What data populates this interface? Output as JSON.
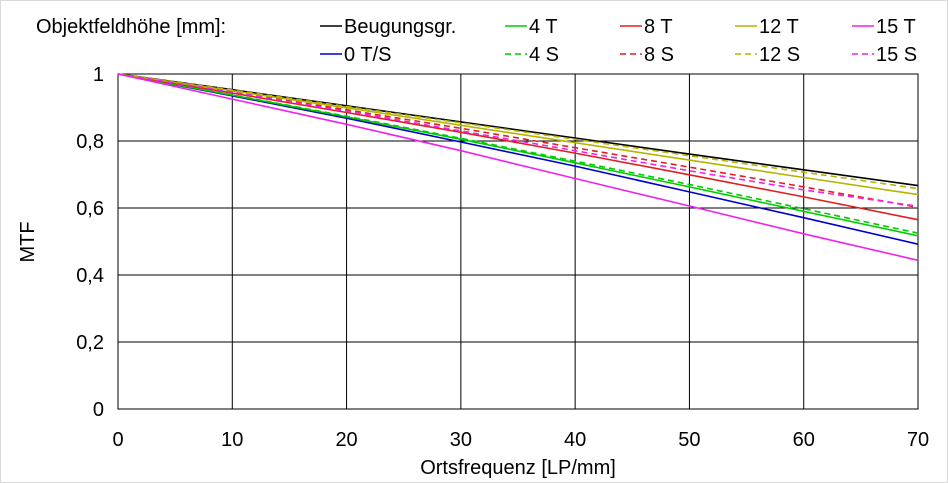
{
  "chart_data": {
    "type": "line",
    "title": "",
    "xlabel": "Ortsfrequenz [LP/mm]",
    "ylabel": "MTF",
    "xlim": [
      0,
      70
    ],
    "ylim": [
      0,
      1
    ],
    "x_ticks": [
      0,
      10,
      20,
      30,
      40,
      50,
      60,
      70
    ],
    "y_ticks": [
      0,
      0.2,
      0.4,
      0.6,
      0.8,
      1
    ],
    "x_tick_labels": [
      "0",
      "10",
      "20",
      "30",
      "40",
      "50",
      "60",
      "70"
    ],
    "y_tick_labels": [
      "0",
      "0,2",
      "0,4",
      "0,6",
      "0,8",
      "1"
    ],
    "grid": true,
    "legend_title": "Objektfeldhöhe [mm]:",
    "legend_position": "top",
    "x": [
      0,
      10,
      20,
      30,
      40,
      50,
      60,
      70
    ],
    "series": [
      {
        "name": "Beugungsgr.",
        "color": "#000000",
        "dash": "solid",
        "values": [
          1,
          0.953,
          0.905,
          0.857,
          0.809,
          0.761,
          0.714,
          0.667
        ]
      },
      {
        "name": "0 T/S",
        "color": "#0000cc",
        "dash": "solid",
        "values": [
          1,
          0.935,
          0.868,
          0.797,
          0.725,
          0.648,
          0.571,
          0.492
        ]
      },
      {
        "name": "4 T",
        "color": "#00cc00",
        "dash": "solid",
        "values": [
          1,
          0.937,
          0.872,
          0.805,
          0.735,
          0.663,
          0.59,
          0.517
        ]
      },
      {
        "name": "4 S",
        "color": "#00cc00",
        "dash": "dashed",
        "values": [
          1,
          0.938,
          0.874,
          0.808,
          0.74,
          0.67,
          0.598,
          0.525
        ]
      },
      {
        "name": "8 T",
        "color": "#e02020",
        "dash": "solid",
        "values": [
          1,
          0.943,
          0.885,
          0.826,
          0.764,
          0.699,
          0.633,
          0.565
        ]
      },
      {
        "name": "8 S",
        "color": "#e02020",
        "dash": "dashed",
        "values": [
          1,
          0.947,
          0.893,
          0.838,
          0.78,
          0.722,
          0.663,
          0.602
        ]
      },
      {
        "name": "12 T",
        "color": "#b5b500",
        "dash": "solid",
        "values": [
          1,
          0.95,
          0.899,
          0.847,
          0.795,
          0.743,
          0.691,
          0.64
        ]
      },
      {
        "name": "12 S",
        "color": "#b5b500",
        "dash": "dashed",
        "values": [
          1,
          0.952,
          0.903,
          0.854,
          0.805,
          0.756,
          0.707,
          0.658
        ]
      },
      {
        "name": "15 T",
        "color": "#ee22ee",
        "dash": "solid",
        "values": [
          1,
          0.925,
          0.85,
          0.771,
          0.688,
          0.606,
          0.523,
          0.444
        ]
      },
      {
        "name": "15 S",
        "color": "#ee22ee",
        "dash": "dashed",
        "values": [
          1,
          0.946,
          0.889,
          0.83,
          0.771,
          0.711,
          0.654,
          0.605
        ]
      }
    ],
    "legend_rows": [
      [
        "Beugungsgr.",
        "4 T",
        "8 T",
        "12 T",
        "15 T"
      ],
      [
        "0 T/S",
        "4 S",
        "8 S",
        "12 S",
        "15 S"
      ]
    ]
  }
}
